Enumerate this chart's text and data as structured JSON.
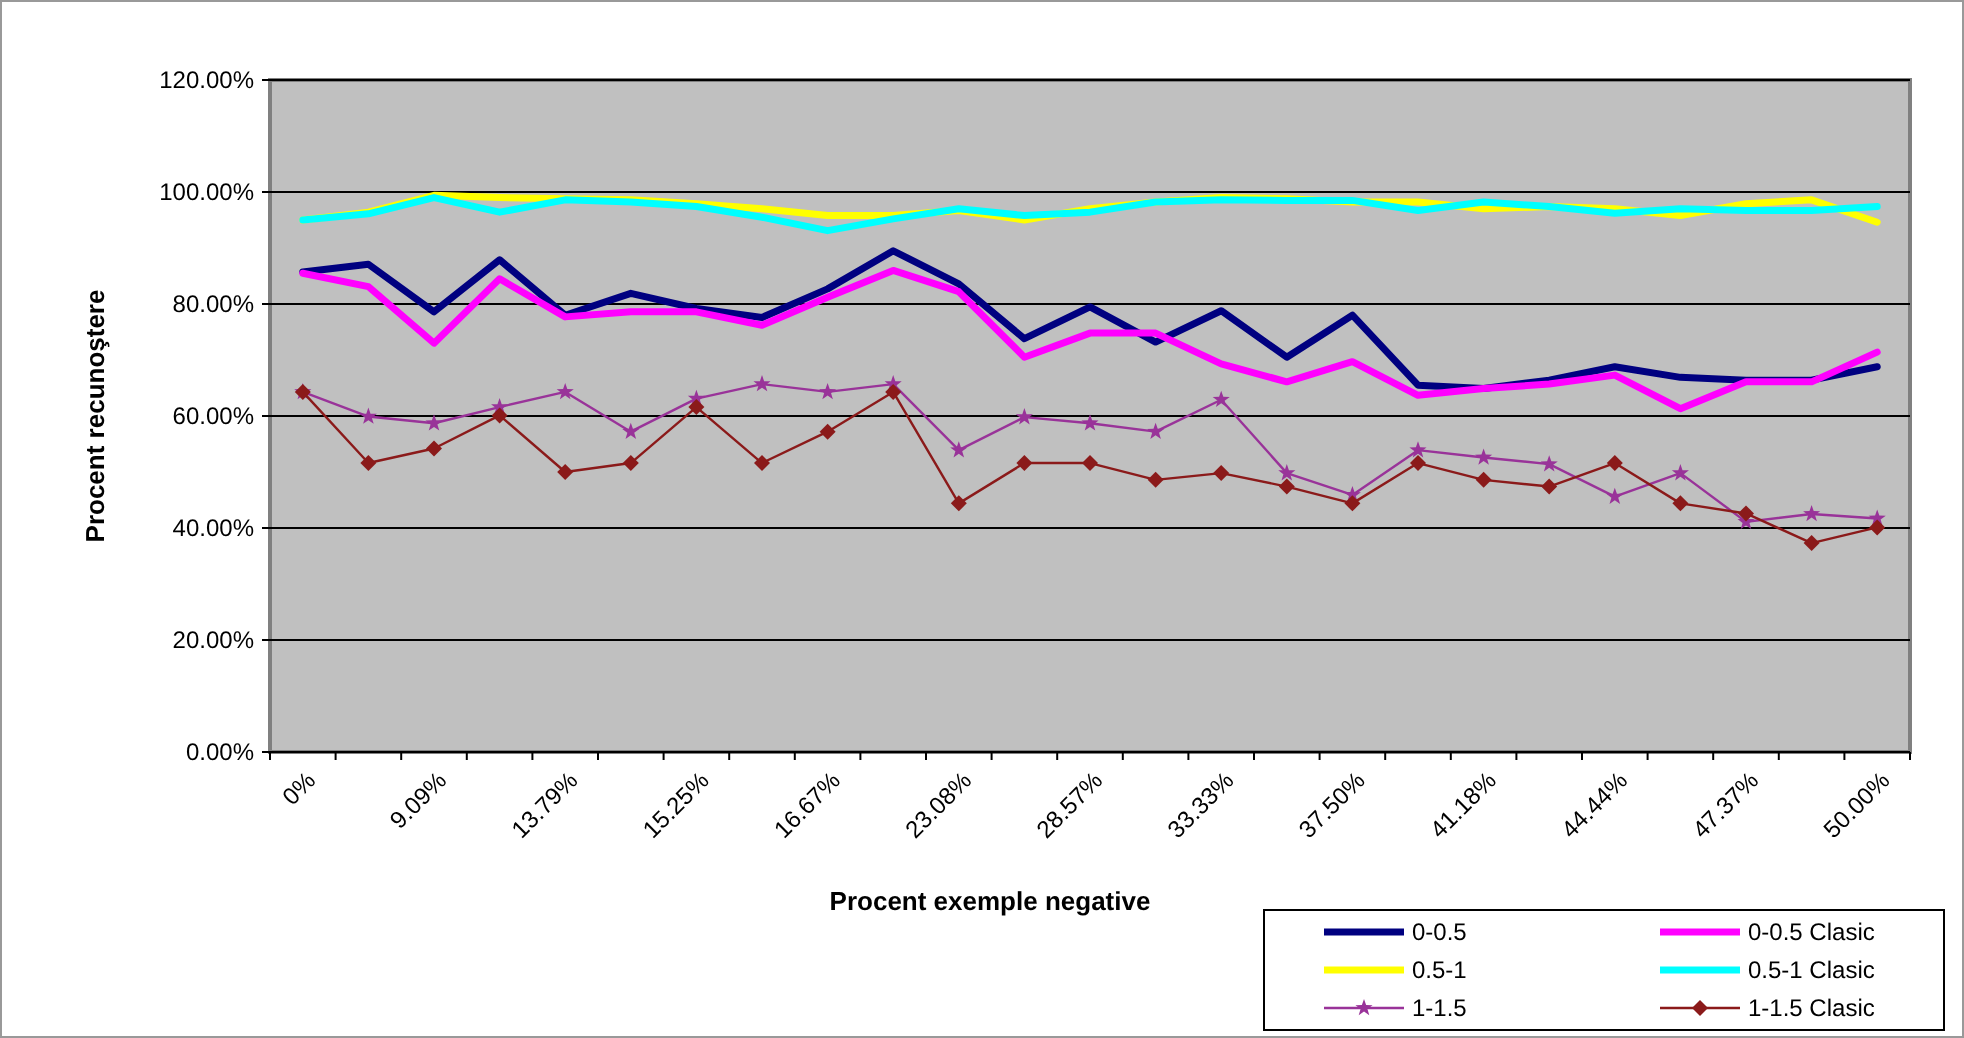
{
  "chart_data": {
    "type": "line",
    "xlabel": "Procent exemple negative",
    "ylabel": "Procent recunoştere",
    "categories": [
      "0%",
      null,
      "9.09%",
      null,
      "13.79%",
      null,
      "15.25%",
      null,
      "16.67%",
      null,
      "23.08%",
      null,
      "28.57%",
      null,
      "33.33%",
      null,
      "37.50%",
      null,
      "41.18%",
      null,
      "44.44%",
      null,
      "47.37%",
      null,
      "50.00%"
    ],
    "ylim": [
      0,
      120
    ],
    "yticks": [
      {
        "value": 0,
        "label": "0.00%"
      },
      {
        "value": 20,
        "label": "20.00%"
      },
      {
        "value": 40,
        "label": "40.00%"
      },
      {
        "value": 60,
        "label": "60.00%"
      },
      {
        "value": 80,
        "label": "80.00%"
      },
      {
        "value": 100,
        "label": "100.00%"
      },
      {
        "value": 120,
        "label": "120.00%"
      }
    ],
    "grid": "y",
    "legend": "bottom right",
    "series": [
      {
        "name": "0-0.5",
        "color": "#000080",
        "marker": "none",
        "values": [
          85.7,
          87.1,
          78.6,
          87.9,
          78.0,
          81.9,
          79.2,
          77.6,
          82.7,
          89.5,
          83.6,
          73.8,
          79.5,
          73.2,
          78.8,
          70.5,
          78.0,
          65.5,
          64.9,
          66.4,
          68.8,
          66.9,
          66.4,
          66.4,
          68.8
        ]
      },
      {
        "name": "0-0.5 Clasic",
        "color": "#ff00ff",
        "marker": "none",
        "values": [
          85.5,
          83.1,
          73.0,
          84.5,
          77.7,
          78.6,
          78.6,
          76.2,
          81.2,
          86.0,
          82.2,
          70.5,
          74.8,
          74.8,
          69.3,
          66.1,
          69.7,
          63.7,
          64.9,
          65.7,
          67.3,
          61.3,
          66.1,
          66.1,
          71.4
        ]
      },
      {
        "name": "0.5-1",
        "color": "#ffff00",
        "marker": "none",
        "values": [
          95.0,
          96.4,
          99.4,
          99.0,
          98.8,
          98.6,
          97.9,
          97.0,
          95.8,
          95.8,
          96.7,
          95.0,
          97.0,
          98.2,
          99.0,
          98.8,
          98.2,
          98.2,
          97.0,
          97.4,
          97.0,
          95.8,
          97.9,
          98.6,
          94.6
        ]
      },
      {
        "name": "0.5-1 Clasic",
        "color": "#00ffff",
        "marker": "none",
        "values": [
          95.0,
          96.1,
          99.0,
          96.4,
          98.6,
          98.2,
          97.4,
          95.5,
          93.1,
          95.2,
          97.0,
          95.8,
          96.4,
          98.2,
          98.6,
          98.5,
          98.5,
          96.7,
          98.2,
          97.4,
          96.2,
          97.0,
          96.7,
          96.7,
          97.4
        ]
      },
      {
        "name": "1-1.5",
        "color": "#993399",
        "marker": "star",
        "values": [
          64.3,
          59.9,
          58.7,
          61.6,
          64.3,
          57.2,
          63.1,
          65.7,
          64.3,
          65.7,
          53.9,
          59.8,
          58.7,
          57.2,
          62.9,
          49.8,
          45.9,
          53.9,
          52.6,
          51.4,
          45.6,
          49.8,
          41.1,
          42.5,
          41.7
        ]
      },
      {
        "name": "1-1.5 Clasic",
        "color": "#8b1a1a",
        "marker": "diamond",
        "values": [
          64.3,
          51.6,
          54.2,
          60.1,
          50.0,
          51.6,
          61.6,
          51.6,
          57.2,
          64.3,
          44.4,
          51.6,
          51.6,
          48.6,
          49.8,
          47.4,
          44.4,
          51.6,
          48.6,
          47.4,
          51.6,
          44.4,
          42.6,
          37.3,
          40.1
        ]
      }
    ]
  }
}
